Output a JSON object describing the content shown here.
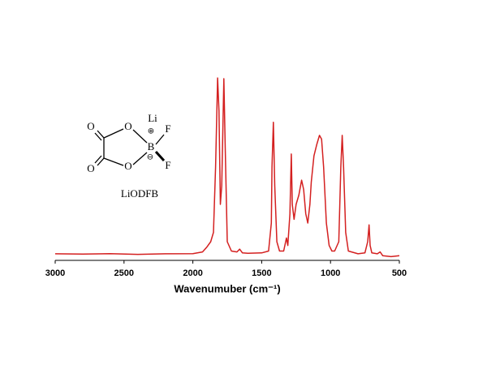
{
  "chart_data": {
    "type": "line",
    "x_label": "Wavenumuber (cm⁻¹)",
    "x": [
      3000,
      2800,
      2600,
      2400,
      2200,
      2000,
      1930,
      1900,
      1870,
      1850,
      1835,
      1820,
      1810,
      1800,
      1790,
      1775,
      1765,
      1750,
      1720,
      1680,
      1660,
      1640,
      1600,
      1500,
      1450,
      1430,
      1425,
      1415,
      1405,
      1390,
      1370,
      1340,
      1320,
      1310,
      1295,
      1285,
      1278,
      1265,
      1250,
      1230,
      1210,
      1195,
      1180,
      1165,
      1150,
      1140,
      1120,
      1100,
      1080,
      1065,
      1050,
      1030,
      1010,
      990,
      970,
      940,
      925,
      915,
      905,
      890,
      870,
      800,
      750,
      730,
      720,
      712,
      700,
      660,
      640,
      620,
      560,
      500
    ],
    "series": [
      {
        "color": "#d42020",
        "values": [
          3.5,
          3.4,
          3.6,
          3.2,
          3.5,
          3.6,
          4.5,
          7,
          10,
          15,
          50,
          97.8,
          80,
          30,
          40,
          97.4,
          60,
          10,
          5,
          4.5,
          6,
          4,
          3.8,
          4,
          5,
          20,
          50,
          74,
          40,
          10,
          5,
          5,
          12,
          8,
          25,
          57,
          30,
          22,
          30,
          35,
          43,
          38,
          25,
          20,
          30,
          42,
          56,
          62,
          67,
          65,
          50,
          20,
          8,
          5,
          5,
          10,
          50,
          67,
          50,
          15,
          5,
          3.5,
          4,
          10,
          19,
          8,
          4,
          3.5,
          4.5,
          2.5,
          2,
          2.5
        ]
      }
    ],
    "xlim": [
      3000,
      500
    ],
    "xticks": [
      3000,
      2500,
      2000,
      1500,
      1000,
      500
    ],
    "ylim": [
      0,
      100
    ],
    "molecule": {
      "name": "LiODFB",
      "cation": "Li",
      "plus": "⊕",
      "minus": "⊖",
      "boron": "B",
      "oxygens": [
        "O",
        "O",
        "O",
        "O"
      ],
      "fluorines": [
        "F",
        "F"
      ]
    }
  }
}
